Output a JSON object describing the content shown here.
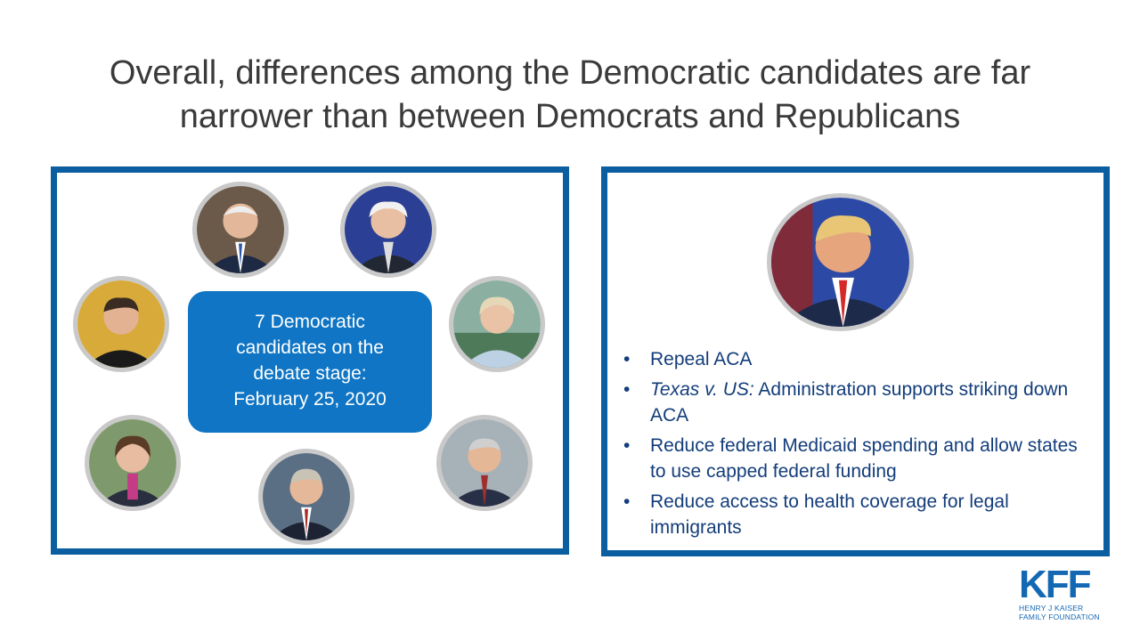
{
  "title": {
    "line1": "Overall, differences among the Democratic candidates are far",
    "line2": "narrower than between Democrats and Republicans"
  },
  "democrats": {
    "callout": {
      "line1": "7 Democratic",
      "line2": "candidates on the",
      "line3": "debate stage:",
      "line4": "February 25, 2020"
    },
    "photos": [
      "candidate-photo-1",
      "candidate-photo-2",
      "candidate-photo-3",
      "candidate-photo-4",
      "candidate-photo-5",
      "candidate-photo-6",
      "candidate-photo-7"
    ]
  },
  "republican": {
    "bullets": [
      {
        "italic": "",
        "text": "Repeal ACA"
      },
      {
        "italic": "Texas v. US:",
        "text": " Administration supports striking down ACA"
      },
      {
        "italic": "",
        "text": "Reduce federal Medicaid spending and allow states to use capped federal funding"
      },
      {
        "italic": "",
        "text": "Reduce access to health coverage for legal immigrants"
      }
    ]
  },
  "logo": {
    "mark": "KFF",
    "line1": "HENRY J KAISER",
    "line2": "FAMILY FOUNDATION"
  },
  "colors": {
    "panel_border": "#0b5ea0",
    "callout_bg": "#0f75c4",
    "bullet_text": "#133d7a",
    "title_text": "#3a3a3a"
  }
}
